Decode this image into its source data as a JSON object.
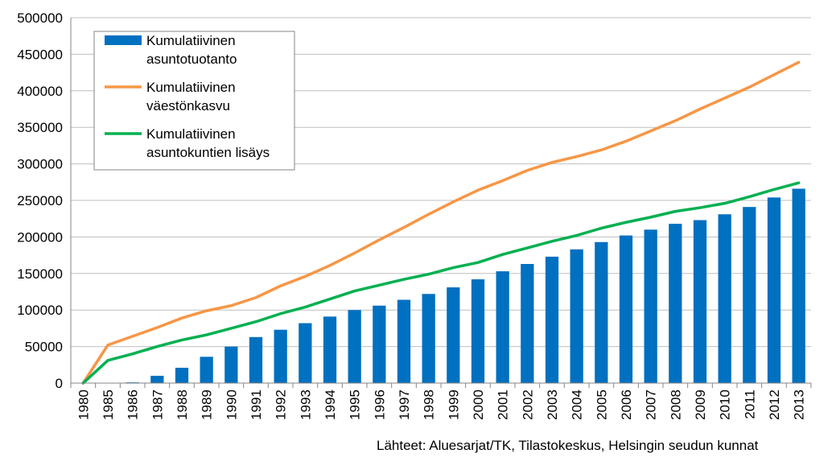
{
  "colors": {
    "bars": "#0070C0",
    "population": "#F79646",
    "households": "#00B050",
    "grid": "#BFBFBF",
    "axis": "#868686"
  },
  "chart_data": {
    "type": "bar",
    "title": "",
    "xlabel": "",
    "ylabel": "",
    "ylim": [
      0,
      500000
    ],
    "yticks": [
      0,
      50000,
      100000,
      150000,
      200000,
      250000,
      300000,
      350000,
      400000,
      450000,
      500000
    ],
    "ytick_labels": [
      "0",
      "50000",
      "100000",
      "150000",
      "200000",
      "250000",
      "300000",
      "350000",
      "400000",
      "450000",
      "500000"
    ],
    "grid": true,
    "legend_position": "top-left",
    "categories": [
      "1980",
      "1985",
      "1986",
      "1987",
      "1988",
      "1989",
      "1990",
      "1991",
      "1992",
      "1993",
      "1994",
      "1995",
      "1996",
      "1997",
      "1998",
      "1999",
      "2000",
      "2001",
      "2002",
      "2003",
      "2004",
      "2005",
      "2006",
      "2007",
      "2008",
      "2009",
      "2010",
      "2011",
      "2012",
      "2013"
    ],
    "series": [
      {
        "name": "Kumulatiivinen asuntotuotanto",
        "legend_lines": [
          "Kumulatiivinen",
          "asuntotuotanto"
        ],
        "kind": "bar",
        "color_key": "bars",
        "values": [
          0,
          0,
          1000,
          10000,
          21000,
          36000,
          50000,
          63000,
          73000,
          82000,
          91000,
          100000,
          106000,
          114000,
          122000,
          131000,
          142000,
          153000,
          163000,
          173000,
          183000,
          193000,
          202000,
          210000,
          218000,
          223000,
          231000,
          241000,
          254000,
          266000
        ]
      },
      {
        "name": "Kumulatiivinen väestönkasvu",
        "legend_lines": [
          "Kumulatiivinen",
          "väestönkasvu"
        ],
        "kind": "line",
        "color_key": "population",
        "values": [
          0,
          52000,
          64000,
          76000,
          89000,
          99000,
          106000,
          117000,
          133000,
          146000,
          161000,
          178000,
          196000,
          213000,
          231000,
          248000,
          264000,
          277000,
          291000,
          302000,
          310000,
          319000,
          331000,
          345000,
          359000,
          375000,
          390000,
          405000,
          422000,
          439000
        ]
      },
      {
        "name": "Kumulatiivinen asuntokuntien lisäys",
        "legend_lines": [
          "Kumulatiivinen",
          "asuntokuntien lisäys"
        ],
        "kind": "line",
        "color_key": "households",
        "values": [
          0,
          31000,
          40000,
          50000,
          59000,
          66000,
          75000,
          84000,
          95000,
          104000,
          115000,
          126000,
          134000,
          142000,
          149000,
          158000,
          165000,
          176000,
          185000,
          194000,
          202000,
          212000,
          220000,
          227000,
          235000,
          240000,
          246000,
          255000,
          265000,
          274000
        ]
      }
    ]
  },
  "source_text": "Lähteet: Aluesarjat/TK, Tilastokeskus, Helsingin seudun kunnat"
}
